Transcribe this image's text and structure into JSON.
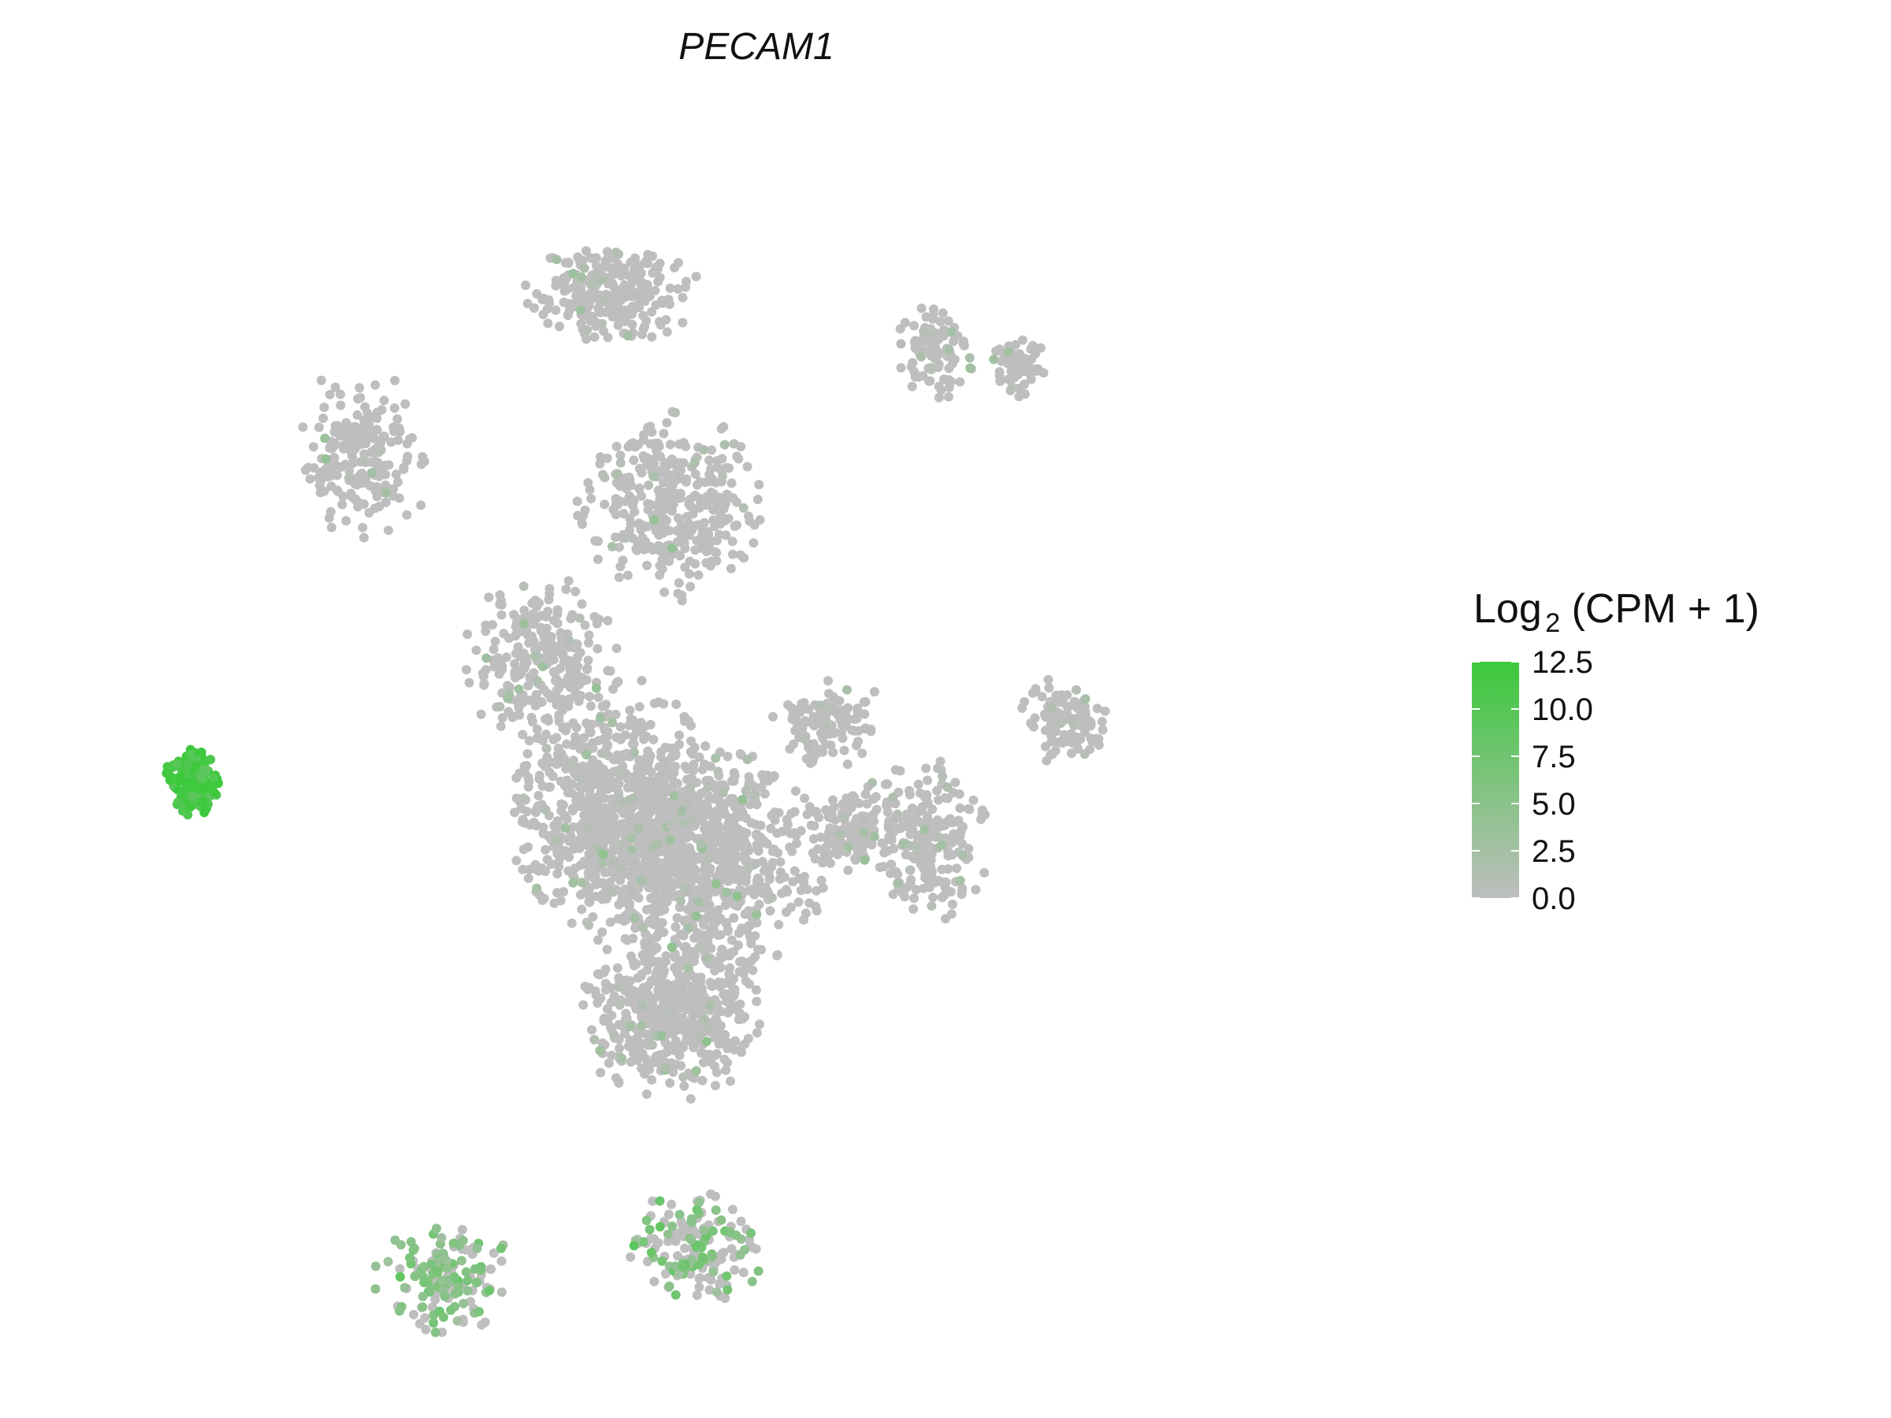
{
  "chart_data": {
    "type": "scatter",
    "title": "PECAM1",
    "xlabel": "",
    "ylabel": "",
    "grid": false,
    "axes_visible": false,
    "legend": {
      "title_base": "Log",
      "title_subscript": "2",
      "title_rest": "(CPM + 1)",
      "placement": "right",
      "ticks": [
        "12.5",
        "10.0",
        "7.5",
        "5.0",
        "2.5",
        "0.0"
      ],
      "range": [
        0,
        12.5
      ]
    },
    "colors": {
      "low": "#BEBEBE",
      "high": "#3CC93C"
    },
    "clusters": [
      {
        "x": 0.38,
        "y": 0.88,
        "rx": 0.075,
        "ry": 0.045,
        "n": 260,
        "expr_mean": 1.0,
        "expr_frac": 0.06
      },
      {
        "x": 0.43,
        "y": 0.7,
        "rx": 0.08,
        "ry": 0.08,
        "n": 360,
        "expr_mean": 1.0,
        "expr_frac": 0.07
      },
      {
        "x": 0.32,
        "y": 0.57,
        "rx": 0.065,
        "ry": 0.08,
        "n": 260,
        "expr_mean": 1.0,
        "expr_frac": 0.06
      },
      {
        "x": 0.38,
        "y": 0.45,
        "rx": 0.09,
        "ry": 0.11,
        "n": 700,
        "expr_mean": 1.0,
        "expr_frac": 0.06
      },
      {
        "x": 0.45,
        "y": 0.4,
        "rx": 0.11,
        "ry": 0.1,
        "n": 900,
        "expr_mean": 1.0,
        "expr_frac": 0.06
      },
      {
        "x": 0.43,
        "y": 0.27,
        "rx": 0.08,
        "ry": 0.07,
        "n": 500,
        "expr_mean": 1.0,
        "expr_frac": 0.06
      },
      {
        "x": 0.58,
        "y": 0.43,
        "rx": 0.04,
        "ry": 0.04,
        "n": 120,
        "expr_mean": 1.0,
        "expr_frac": 0.05
      },
      {
        "x": 0.64,
        "y": 0.42,
        "rx": 0.06,
        "ry": 0.07,
        "n": 220,
        "expr_mean": 1.0,
        "expr_frac": 0.08
      },
      {
        "x": 0.56,
        "y": 0.52,
        "rx": 0.05,
        "ry": 0.04,
        "n": 110,
        "expr_mean": 1.0,
        "expr_frac": 0.05
      },
      {
        "x": 0.17,
        "y": 0.74,
        "rx": 0.06,
        "ry": 0.08,
        "n": 200,
        "expr_mean": 1.0,
        "expr_frac": 0.06
      },
      {
        "x": 0.03,
        "y": 0.47,
        "rx": 0.025,
        "ry": 0.03,
        "n": 150,
        "expr_mean": 12.0,
        "expr_frac": 1.0
      },
      {
        "x": 0.65,
        "y": 0.83,
        "rx": 0.035,
        "ry": 0.04,
        "n": 90,
        "expr_mean": 1.0,
        "expr_frac": 0.05
      },
      {
        "x": 0.24,
        "y": 0.05,
        "rx": 0.06,
        "ry": 0.05,
        "n": 160,
        "expr_mean": 5.5,
        "expr_frac": 0.55
      },
      {
        "x": 0.45,
        "y": 0.08,
        "rx": 0.06,
        "ry": 0.05,
        "n": 160,
        "expr_mean": 6.0,
        "expr_frac": 0.45
      },
      {
        "x": 0.76,
        "y": 0.52,
        "rx": 0.04,
        "ry": 0.04,
        "n": 110,
        "expr_mean": 1.0,
        "expr_frac": 0.05
      },
      {
        "x": 0.72,
        "y": 0.82,
        "rx": 0.025,
        "ry": 0.03,
        "n": 60,
        "expr_mean": 1.0,
        "expr_frac": 0.05
      }
    ]
  }
}
